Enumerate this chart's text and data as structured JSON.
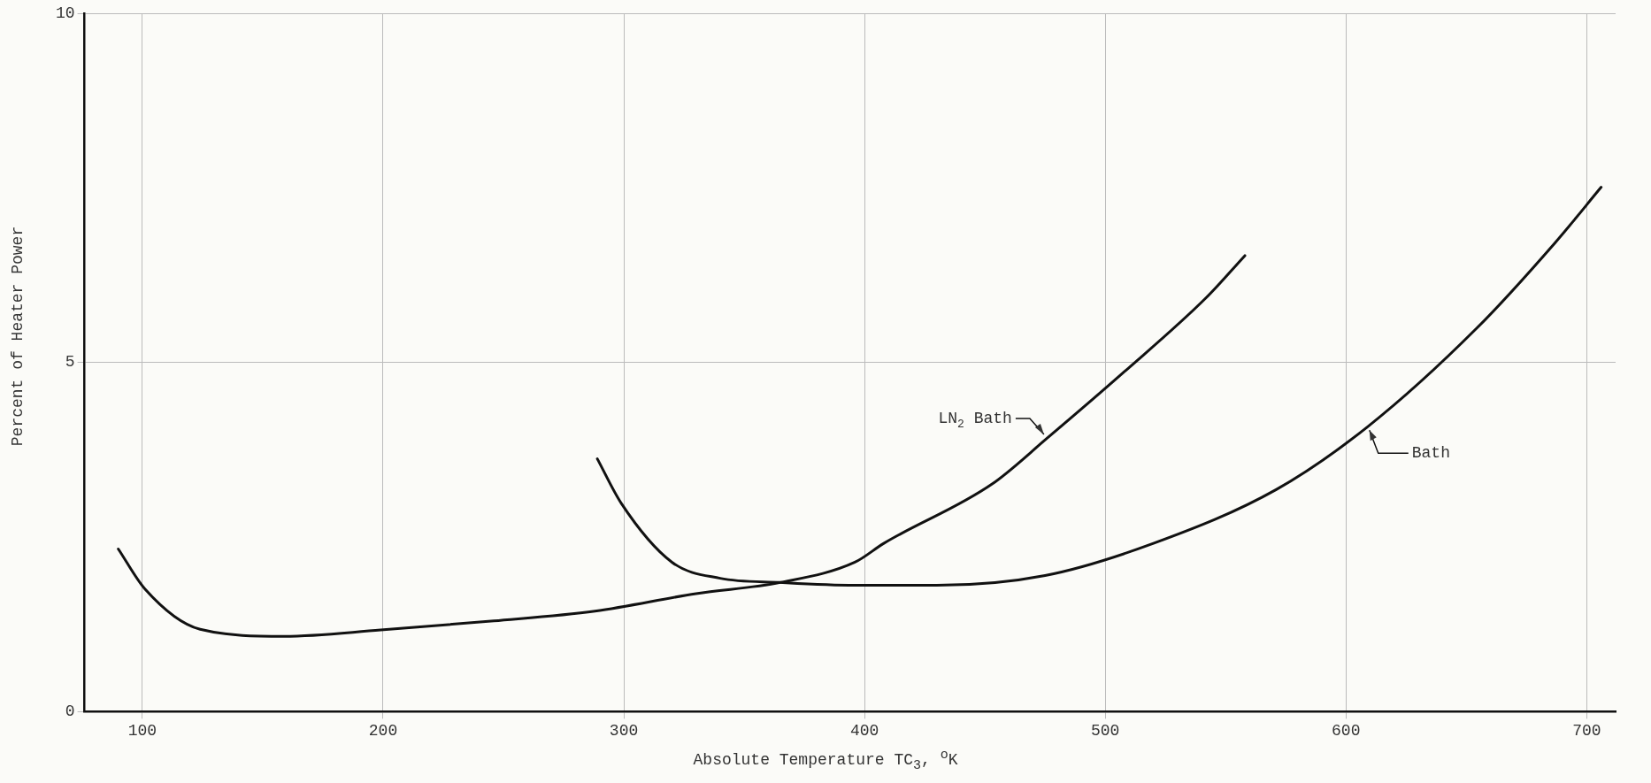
{
  "chart_data": {
    "type": "line",
    "xlabel": "Absolute Temperature TC$_{3}$, $^{o}$K",
    "ylabel": "Percent of Heater Power",
    "xlim": [
      76,
      712
    ],
    "xticks": [
      100,
      200,
      300,
      400,
      500,
      600,
      700
    ],
    "ylim": [
      0,
      10
    ],
    "yticks": [
      0,
      5,
      10
    ],
    "grid": true,
    "marker": "none",
    "line_style": "solid",
    "series": [
      {
        "name": "LN$_{2}$ Bath",
        "color": "#111111",
        "x": [
          90,
          101,
          124,
          159,
          199,
          246,
          288,
          330,
          365,
          396,
          408,
          453,
          476,
          508,
          542,
          558
        ],
        "values": [
          2.33,
          1.76,
          1.18,
          1.08,
          1.17,
          1.3,
          1.44,
          1.69,
          1.85,
          2.14,
          2.41,
          3.26,
          3.92,
          4.87,
          5.93,
          6.53
        ]
      },
      {
        "name": "Bath",
        "color": "#111111",
        "x": [
          289,
          299,
          320,
          340,
          365,
          396,
          430,
          475,
          520,
          571,
          609,
          654,
          687,
          706
        ],
        "values": [
          3.62,
          2.98,
          2.14,
          1.91,
          1.85,
          1.81,
          1.81,
          1.95,
          2.41,
          3.18,
          4.08,
          5.48,
          6.72,
          7.51
        ]
      }
    ]
  }
}
